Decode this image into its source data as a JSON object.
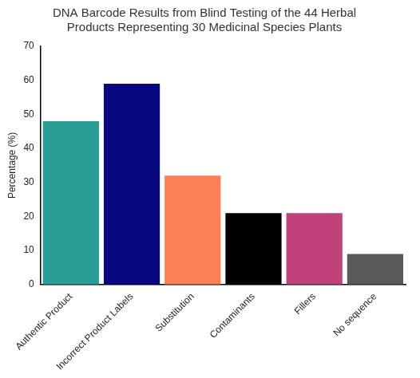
{
  "chart_data": {
    "type": "bar",
    "title": [
      "DNA Barcode Results from Blind Testing of the 44 Herbal",
      "Products Representing 30 Medicinal Species Plants"
    ],
    "y_label": "Percentage (%)",
    "categories": [
      "Authentic Product",
      "Incorrect Product Labels",
      "Substitution",
      "Contaminants",
      "Fillers",
      "No sequence"
    ],
    "values": [
      48,
      59,
      32,
      21,
      21,
      9
    ],
    "colors": [
      "#2a9d94",
      "#08087f",
      "#fb7f55",
      "#000000",
      "#bf427a",
      "#595959"
    ],
    "ylim": [
      0,
      70
    ],
    "yticks": [
      0,
      10,
      20,
      30,
      40,
      50,
      60,
      70
    ],
    "grid": false
  }
}
